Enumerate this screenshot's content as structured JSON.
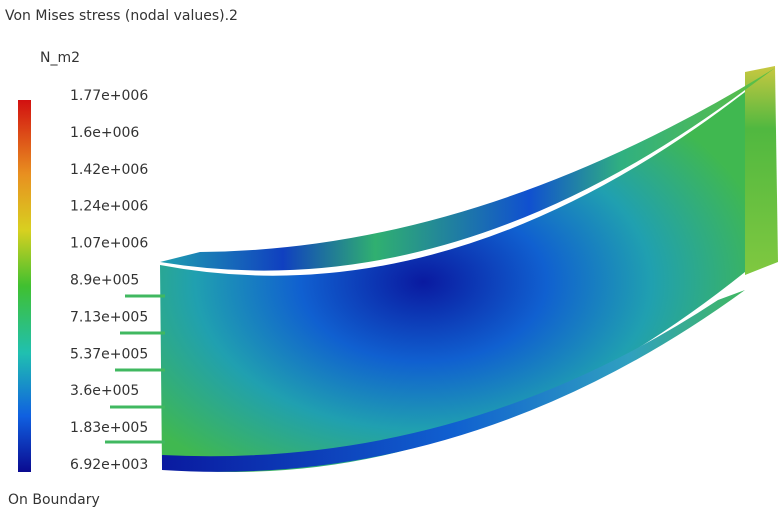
{
  "title": "Von Mises stress (nodal values).2",
  "legend": {
    "unit": "N_m2",
    "labels": [
      "1.77e+006",
      "1.6e+006",
      "1.42e+006",
      "1.24e+006",
      "1.07e+006",
      "8.9e+005",
      "7.13e+005",
      "5.37e+005",
      "3.6e+005",
      "1.83e+005",
      "6.92e+003"
    ]
  },
  "footer": "On Boundary"
}
